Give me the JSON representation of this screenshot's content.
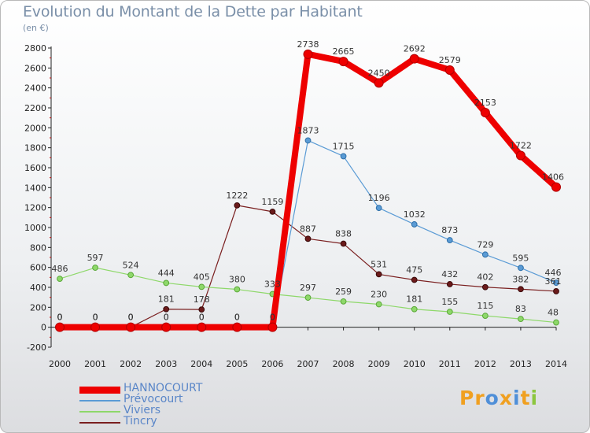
{
  "title": "Evolution du Montant de la Dette par Habitant",
  "unit": "(en €)",
  "logo": {
    "parts": [
      {
        "text": "Pr",
        "color": "#f0a020"
      },
      {
        "text": "o",
        "color": "#4f8fd8"
      },
      {
        "text": "x",
        "color": "#f0a020"
      },
      {
        "text": "i",
        "color": "#4f8fd8"
      },
      {
        "text": "t",
        "color": "#f0a020"
      },
      {
        "text": "i",
        "color": "#8cc63e"
      }
    ]
  },
  "chart_data": {
    "type": "line",
    "x": [
      "2000",
      "2001",
      "2002",
      "2003",
      "2004",
      "2005",
      "2006",
      "2007",
      "2008",
      "2009",
      "2010",
      "2011",
      "2012",
      "2013",
      "2014"
    ],
    "ylim": [
      -200,
      2800
    ],
    "yticks": [
      -200,
      0,
      200,
      400,
      600,
      800,
      1000,
      1200,
      1400,
      1600,
      1800,
      2000,
      2200,
      2400,
      2600,
      2800
    ],
    "grid": false,
    "legend_position": "bottom-left",
    "series": [
      {
        "name": "Tincry",
        "color": "#7a1f1f",
        "values": [
          0,
          0,
          0,
          181,
          178,
          1222,
          1159,
          887,
          838,
          531,
          475,
          432,
          402,
          382,
          361
        ]
      },
      {
        "name": "Viviers",
        "color": "#8ed86a",
        "values": [
          486,
          597,
          524,
          444,
          405,
          380,
          333,
          297,
          259,
          230,
          181,
          155,
          115,
          83,
          48
        ]
      },
      {
        "name": "Prévocourt",
        "color": "#5a9bd5",
        "values": [
          0,
          0,
          0,
          0,
          0,
          0,
          0,
          1873,
          1715,
          1196,
          1032,
          873,
          729,
          595,
          446
        ]
      },
      {
        "name": "HANNOCOURT",
        "color": "#ee0000",
        "values": [
          0,
          0,
          0,
          0,
          0,
          0,
          0,
          2738,
          2665,
          2450,
          2692,
          2579,
          2153,
          1722,
          1406
        ]
      }
    ],
    "legend_order": [
      "HANNOCOURT",
      "Prévocourt",
      "Viviers",
      "Tincry"
    ]
  }
}
